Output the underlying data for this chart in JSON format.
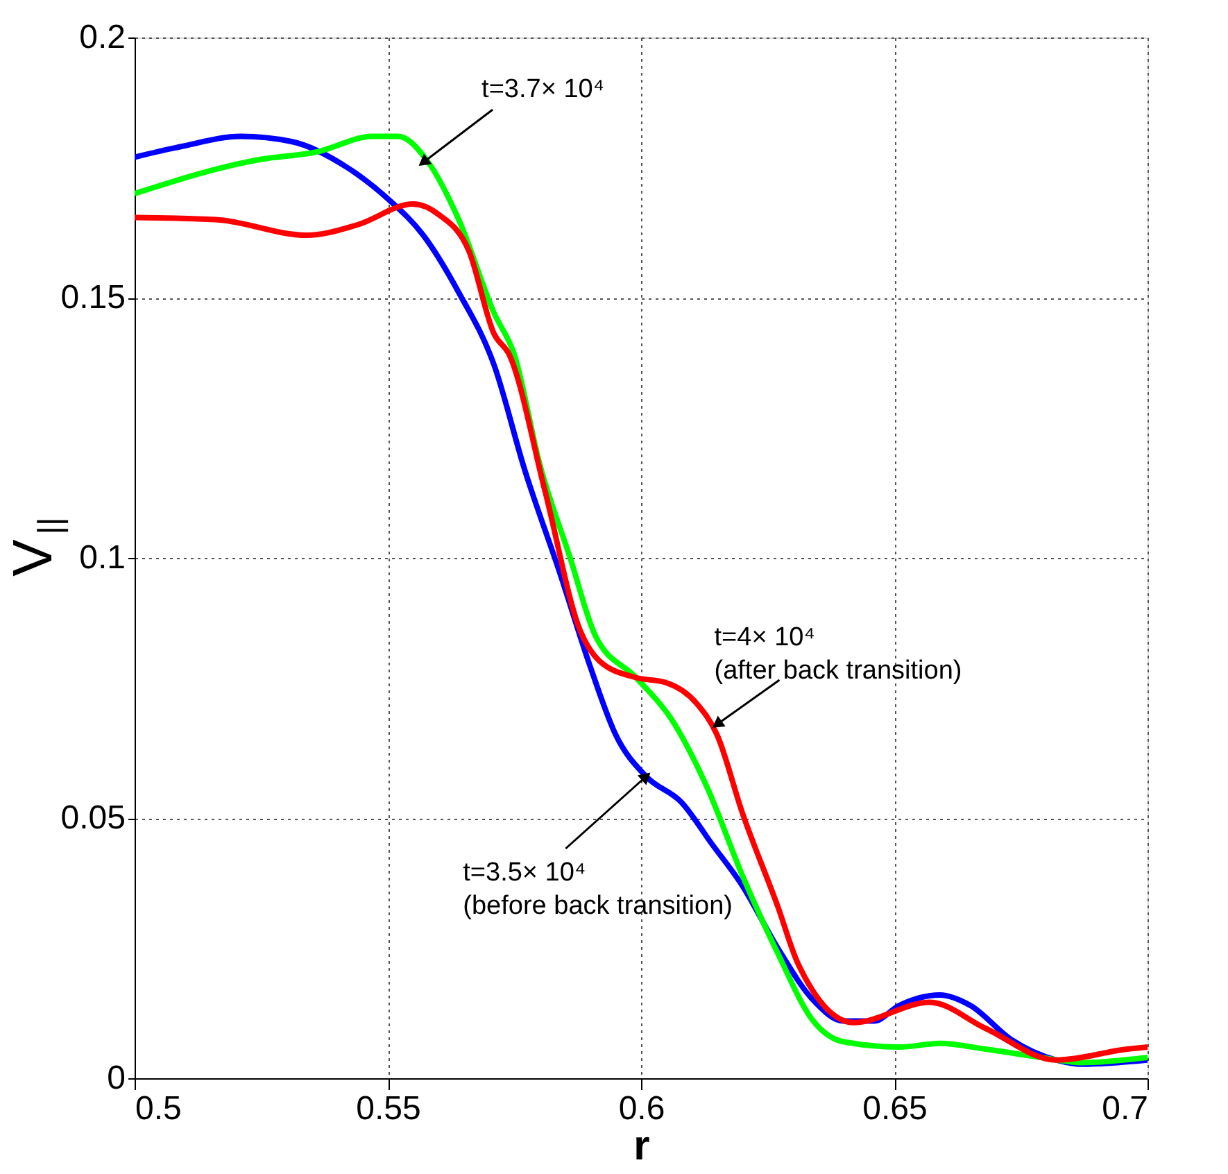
{
  "chart_data": {
    "type": "line",
    "xlabel": "r",
    "ylabel": "V$_{||}$",
    "xlim": [
      0.5,
      0.7
    ],
    "ylim": [
      0,
      0.2
    ],
    "xticks": [
      0.5,
      0.55,
      0.6,
      0.65,
      0.7
    ],
    "yticks": [
      0,
      0.05,
      0.1,
      0.15,
      0.2
    ],
    "grid": true,
    "line_style": "solid",
    "marker": "none",
    "series": [
      {
        "color": "#0000ff",
        "x": [
          0.5,
          0.509,
          0.521,
          0.531,
          0.542,
          0.55,
          0.557,
          0.564,
          0.571,
          0.577,
          0.584,
          0.59,
          0.595,
          0.601,
          0.608,
          0.614,
          0.62,
          0.627,
          0.634,
          0.64,
          0.646,
          0.651,
          0.659,
          0.665,
          0.673,
          0.682,
          0.687,
          0.7
        ],
        "values": [
          0.177,
          0.179,
          0.181,
          0.18,
          0.175,
          0.169,
          0.162,
          0.151,
          0.137,
          0.117,
          0.097,
          0.079,
          0.066,
          0.058,
          0.053,
          0.045,
          0.037,
          0.025,
          0.015,
          0.011,
          0.011,
          0.014,
          0.016,
          0.014,
          0.0075,
          0.0035,
          0.0027,
          0.0035
        ]
      },
      {
        "color": "#00ff00",
        "x": [
          0.5,
          0.525,
          0.536,
          0.547,
          0.552,
          0.558,
          0.564,
          0.571,
          0.575,
          0.58,
          0.586,
          0.591,
          0.599,
          0.606,
          0.613,
          0.62,
          0.627,
          0.634,
          0.64,
          0.651,
          0.659,
          0.668,
          0.679,
          0.687,
          0.7
        ],
        "values": [
          0.17,
          0.1766,
          0.178,
          0.181,
          0.181,
          0.176,
          0.165,
          0.147,
          0.139,
          0.118,
          0.1,
          0.085,
          0.077,
          0.069,
          0.056,
          0.039,
          0.024,
          0.011,
          0.007,
          0.006,
          0.0067,
          0.0056,
          0.004,
          0.003,
          0.004
        ]
      },
      {
        "color": "#ff0000",
        "x": [
          0.5,
          0.516,
          0.534,
          0.544,
          0.555,
          0.56,
          0.566,
          0.571,
          0.574,
          0.581,
          0.588,
          0.592,
          0.599,
          0.605,
          0.611,
          0.615,
          0.62,
          0.627,
          0.631,
          0.642,
          0.657,
          0.668,
          0.682,
          0.696,
          0.7
        ],
        "values": [
          0.1654,
          0.165,
          0.162,
          0.164,
          0.168,
          0.166,
          0.159,
          0.143,
          0.139,
          0.113,
          0.086,
          0.08,
          0.077,
          0.076,
          0.072,
          0.066,
          0.051,
          0.033,
          0.022,
          0.0107,
          0.0146,
          0.0096,
          0.0035,
          0.0056,
          0.006
        ]
      }
    ],
    "annotations": [
      {
        "text": "t=3.7× 10⁴",
        "x": 0.557,
        "y": 0.176
      },
      {
        "text": "t=4× 10⁴\n(after back transition)",
        "x": 0.615,
        "y": 0.068
      },
      {
        "text": "t=3.5× 10⁴\n(before back transition)",
        "x": 0.601,
        "y": 0.058
      }
    ]
  }
}
